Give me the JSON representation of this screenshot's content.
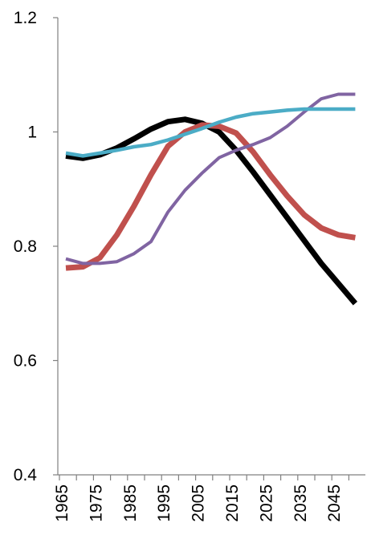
{
  "chart_data": {
    "type": "line",
    "title": "",
    "xlabel": "",
    "ylabel": "",
    "ylim": [
      0.4,
      1.2
    ],
    "y_ticks": [
      "0.4",
      "0.6",
      "0.8",
      "1",
      "1.2"
    ],
    "x_ticks": [
      "1965",
      "1975",
      "1985",
      "1995",
      "2005",
      "2015",
      "2025",
      "2035",
      "2045"
    ],
    "x": [
      1965,
      1970,
      1975,
      1980,
      1985,
      1990,
      1995,
      2000,
      2005,
      2010,
      2015,
      2020,
      2025,
      2030,
      2035,
      2040,
      2045,
      2050
    ],
    "grid": false,
    "legend": "none",
    "series": [
      {
        "color": "#000000",
        "values": [
          0.958,
          0.954,
          0.96,
          0.972,
          0.988,
          1.005,
          1.018,
          1.022,
          1.015,
          1.0,
          0.968,
          0.93,
          0.89,
          0.85,
          0.81,
          0.77,
          0.735,
          0.7
        ]
      },
      {
        "color": "#c0504d",
        "values": [
          0.762,
          0.764,
          0.78,
          0.82,
          0.87,
          0.925,
          0.975,
          1.0,
          1.012,
          1.01,
          0.998,
          0.965,
          0.925,
          0.888,
          0.855,
          0.832,
          0.82,
          0.815
        ]
      },
      {
        "color": "#8064a2",
        "values": [
          0.778,
          0.77,
          0.77,
          0.773,
          0.787,
          0.808,
          0.86,
          0.898,
          0.928,
          0.955,
          0.968,
          0.978,
          0.99,
          1.01,
          1.035,
          1.058,
          1.066,
          1.066
        ]
      },
      {
        "color": "#4bacc6",
        "values": [
          0.963,
          0.958,
          0.963,
          0.968,
          0.974,
          0.978,
          0.986,
          0.996,
          1.006,
          1.017,
          1.026,
          1.032,
          1.035,
          1.038,
          1.04,
          1.04,
          1.04,
          1.04
        ]
      }
    ]
  }
}
